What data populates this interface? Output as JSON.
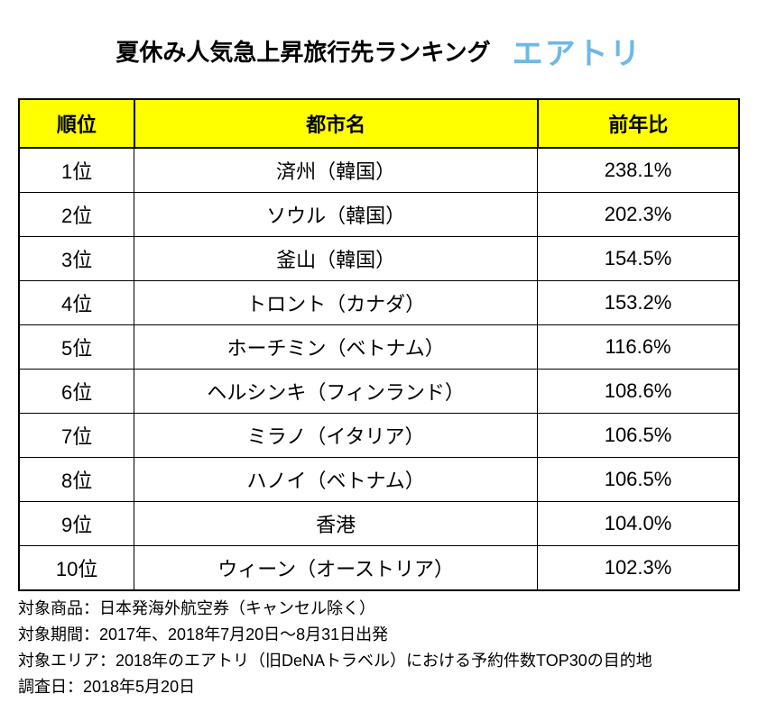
{
  "title": "夏休み人気急上昇旅行先ランキング",
  "logo": {
    "text": "エアトリ",
    "color": "#6db8e6"
  },
  "table": {
    "header_bg": "#ffff00",
    "columns": [
      "順位",
      "都市名",
      "前年比"
    ],
    "col_widths_pct": [
      16,
      56,
      28
    ],
    "rows": [
      {
        "rank": "1位",
        "city": "済州（韓国）",
        "pct": "238.1%"
      },
      {
        "rank": "2位",
        "city": "ソウル（韓国）",
        "pct": "202.3%"
      },
      {
        "rank": "3位",
        "city": "釜山（韓国）",
        "pct": "154.5%"
      },
      {
        "rank": "4位",
        "city": "トロント（カナダ）",
        "pct": "153.2%"
      },
      {
        "rank": "5位",
        "city": "ホーチミン（ベトナム）",
        "pct": "116.6%"
      },
      {
        "rank": "6位",
        "city": "ヘルシンキ（フィンランド）",
        "pct": "108.6%"
      },
      {
        "rank": "7位",
        "city": "ミラノ（イタリア）",
        "pct": "106.5%"
      },
      {
        "rank": "8位",
        "city": "ハノイ（ベトナム）",
        "pct": "106.5%"
      },
      {
        "rank": "9位",
        "city": "香港",
        "pct": "104.0%"
      },
      {
        "rank": "10位",
        "city": "ウィーン（オーストリア）",
        "pct": "102.3%"
      }
    ]
  },
  "notes": [
    "対象商品：日本発海外航空券（キャンセル除く）",
    "対象期間：2017年、2018年7月20日～8月31日出発",
    "対象エリア：2018年のエアトリ（旧DeNAトラベル）における予約件数TOP30の目的地",
    "調査日：2018年5月20日"
  ]
}
